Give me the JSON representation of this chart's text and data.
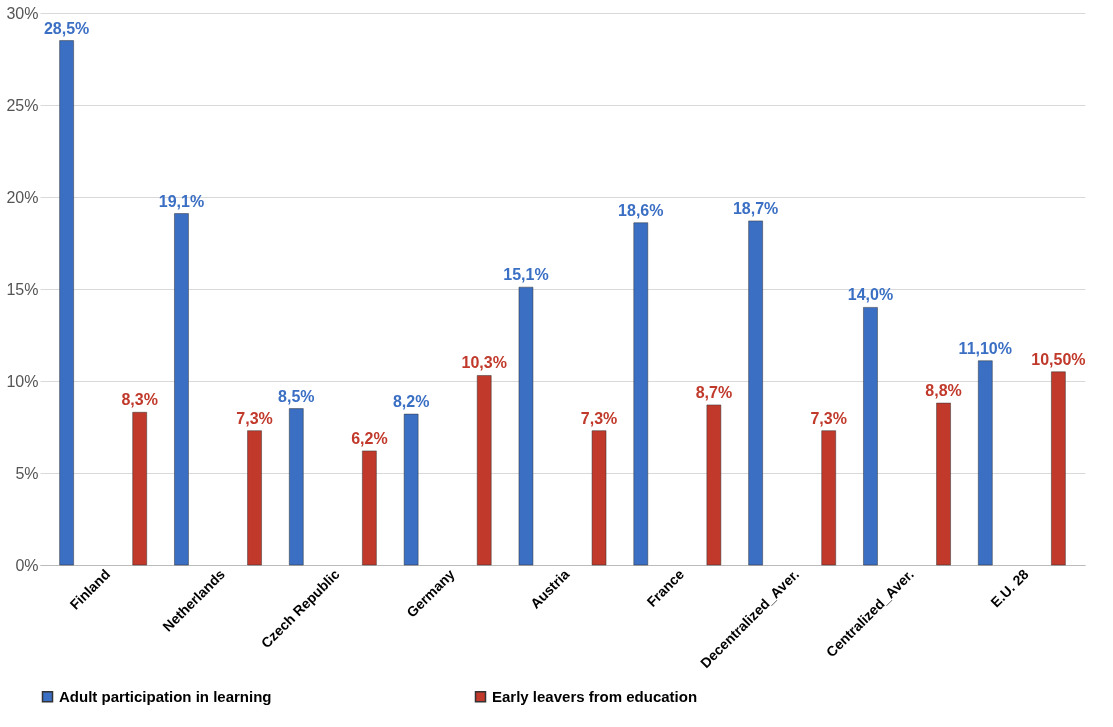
{
  "chart_data": {
    "type": "bar",
    "categories": [
      "Finland",
      "Netherlands",
      "Czech Republic",
      "Germany",
      "Austria",
      "France",
      "Decentralized_Aver.",
      "Centralized_Aver.",
      "E.U. 28"
    ],
    "series": [
      {
        "name": "Adult participation in learning",
        "color": "#3a6fc4",
        "values": [
          28.5,
          19.1,
          8.5,
          8.2,
          15.1,
          18.6,
          18.7,
          14.0,
          11.1
        ],
        "value_labels": [
          "28,5%",
          "19,1%",
          "8,5%",
          "8,2%",
          "15,1%",
          "18,6%",
          "18,7%",
          "14,0%",
          "11,10%"
        ]
      },
      {
        "name": "Early leavers from education",
        "color": "#c0392b",
        "values": [
          8.3,
          7.3,
          6.2,
          10.3,
          7.3,
          8.7,
          7.3,
          8.8,
          10.5
        ],
        "value_labels": [
          "8,3%",
          "7,3%",
          "6,2%",
          "10,3%",
          "7,3%",
          "8,7%",
          "7,3%",
          "8,8%",
          "10,50%"
        ]
      }
    ],
    "ylim": [
      0,
      30
    ],
    "yticks": [
      {
        "value": 0,
        "label": "0%"
      },
      {
        "value": 5,
        "label": "5%"
      },
      {
        "value": 10,
        "label": "10%"
      },
      {
        "value": 15,
        "label": "15%"
      },
      {
        "value": 20,
        "label": "20%"
      },
      {
        "value": 25,
        "label": "25%"
      },
      {
        "value": 30,
        "label": "30%"
      }
    ],
    "grid": "y",
    "legend": "bottom"
  }
}
